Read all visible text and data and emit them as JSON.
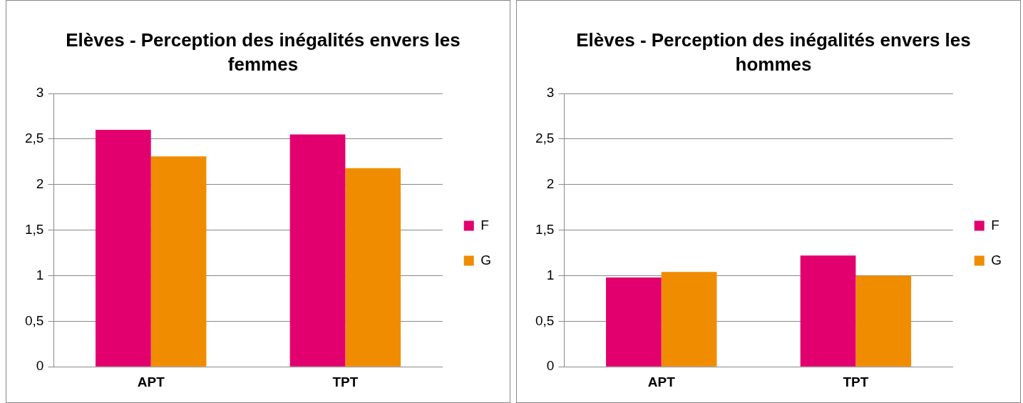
{
  "chart_data": [
    {
      "type": "bar",
      "title": "Elèves - Perception des inégalités envers les femmes",
      "categories": [
        "APT",
        "TPT"
      ],
      "series": [
        {
          "name": "F",
          "color": "#e2006e",
          "values": [
            2.6,
            2.55
          ]
        },
        {
          "name": "G",
          "color": "#f08c00",
          "values": [
            2.31,
            2.18
          ]
        }
      ],
      "ylim": [
        0,
        3
      ],
      "yticks": [
        0,
        {
          "value": 0.5,
          "label": "0,5"
        },
        1,
        {
          "value": 1.5,
          "label": "1,5"
        },
        2,
        {
          "value": 2.5,
          "label": "2,5"
        },
        3
      ],
      "grid": "y",
      "legend": "right"
    },
    {
      "type": "bar",
      "title": "Elèves - Perception des inégalités envers les hommes",
      "categories": [
        "APT",
        "TPT"
      ],
      "series": [
        {
          "name": "F",
          "color": "#e2006e",
          "values": [
            0.98,
            1.22
          ]
        },
        {
          "name": "G",
          "color": "#f08c00",
          "values": [
            1.04,
            1.0
          ]
        }
      ],
      "ylim": [
        0,
        3
      ],
      "yticks": [
        0,
        {
          "value": 0.5,
          "label": "0,5"
        },
        1,
        {
          "value": 1.5,
          "label": "1,5"
        },
        2,
        {
          "value": 2.5,
          "label": "2,5"
        },
        3
      ],
      "grid": "y",
      "legend": "right"
    }
  ]
}
